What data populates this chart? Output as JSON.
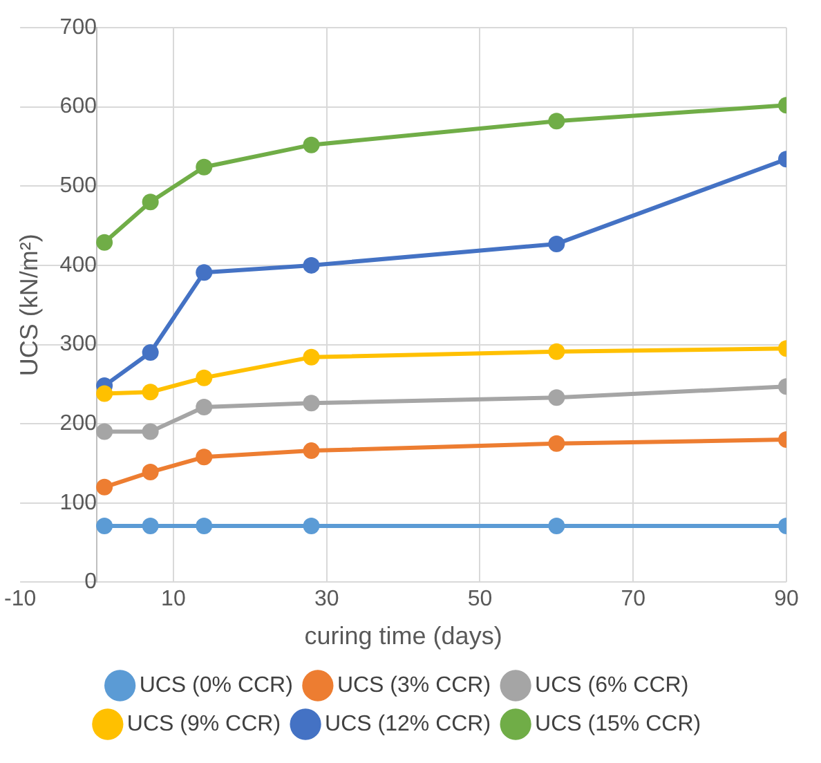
{
  "chart_data": {
    "type": "line",
    "xlabel": "curing time (days)",
    "ylabel": "UCS (kN/m²)",
    "x": [
      1,
      7,
      14,
      28,
      60,
      90
    ],
    "xlim": [
      -10,
      90
    ],
    "xticks": [
      -10,
      10,
      30,
      50,
      70,
      90
    ],
    "ylim": [
      0,
      700
    ],
    "yticks": [
      0,
      100,
      200,
      300,
      400,
      500,
      600,
      700
    ],
    "grid": true,
    "legend": "bottom",
    "marker": "circle",
    "line_style": "solid",
    "series": [
      {
        "name": "UCS (0% CCR)",
        "color": "#5b9bd5",
        "values": [
          71,
          71,
          71,
          71,
          71,
          71
        ]
      },
      {
        "name": "UCS (3% CCR)",
        "color": "#ed7d31",
        "values": [
          120,
          139,
          158,
          166,
          175,
          180
        ]
      },
      {
        "name": "UCS (6% CCR)",
        "color": "#a5a5a5",
        "values": [
          190,
          190,
          221,
          226,
          233,
          247
        ]
      },
      {
        "name": "UCS (9% CCR)",
        "color": "#ffc000",
        "values": [
          238,
          240,
          258,
          284,
          291,
          295
        ]
      },
      {
        "name": "UCS (12% CCR)",
        "color": "#4472c4",
        "values": [
          248,
          290,
          391,
          400,
          427,
          534
        ]
      },
      {
        "name": "UCS (15% CCR)",
        "color": "#70ad47",
        "values": [
          429,
          480,
          524,
          552,
          582,
          602
        ]
      }
    ]
  }
}
